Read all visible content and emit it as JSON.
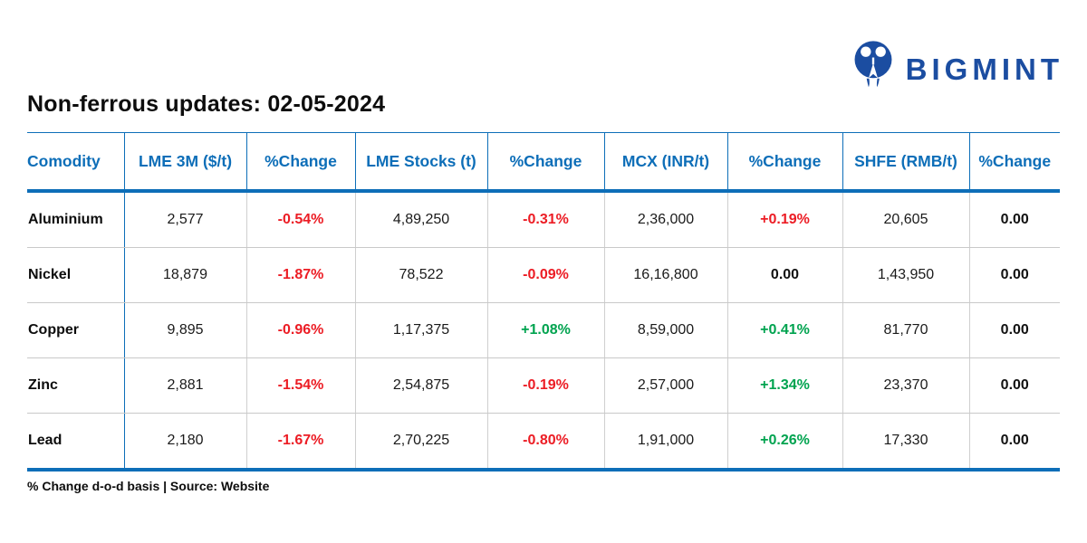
{
  "logo": {
    "text": "BIGMINT",
    "color": "#1B4DA1"
  },
  "title": "Non-ferrous updates: 02-05-2024",
  "footnote": "% Change d-o-d basis | Source: Website",
  "colors": {
    "header_blue": "#0d6eb8",
    "negative_red": "#EC1C24",
    "positive_green": "#00A34F",
    "neutral_black": "#111111",
    "divider_gray": "#c9c9c9"
  },
  "chart_data": {
    "type": "table",
    "title": "Non-ferrous updates: 02-05-2024",
    "note": "% Change d-o-d basis | Source: Website",
    "columns": [
      "Comodity",
      "LME 3M ($/t)",
      "%Change",
      "LME Stocks (t)",
      "%Change",
      "MCX (INR/t)",
      "%Change",
      "SHFE (RMB/t)",
      "%Change"
    ],
    "rows": [
      {
        "cells": [
          {
            "text": "Aluminium",
            "style": "commodity"
          },
          {
            "text": "2,577",
            "style": "num"
          },
          {
            "text": "-0.54%",
            "style": "red"
          },
          {
            "text": "4,89,250",
            "style": "num"
          },
          {
            "text": "-0.31%",
            "style": "red"
          },
          {
            "text": "2,36,000",
            "style": "num"
          },
          {
            "text": "+0.19%",
            "style": "red"
          },
          {
            "text": "20,605",
            "style": "num"
          },
          {
            "text": "0.00",
            "style": "zero"
          }
        ]
      },
      {
        "cells": [
          {
            "text": "Nickel",
            "style": "commodity"
          },
          {
            "text": "18,879",
            "style": "num"
          },
          {
            "text": "-1.87%",
            "style": "red"
          },
          {
            "text": "78,522",
            "style": "num"
          },
          {
            "text": "-0.09%",
            "style": "red"
          },
          {
            "text": "16,16,800",
            "style": "num"
          },
          {
            "text": "0.00",
            "style": "zero"
          },
          {
            "text": "1,43,950",
            "style": "num"
          },
          {
            "text": "0.00",
            "style": "zero"
          }
        ]
      },
      {
        "cells": [
          {
            "text": "Copper",
            "style": "commodity"
          },
          {
            "text": "9,895",
            "style": "num"
          },
          {
            "text": "-0.96%",
            "style": "red"
          },
          {
            "text": "1,17,375",
            "style": "num"
          },
          {
            "text": "+1.08%",
            "style": "green"
          },
          {
            "text": "8,59,000",
            "style": "num"
          },
          {
            "text": "+0.41%",
            "style": "green"
          },
          {
            "text": "81,770",
            "style": "num"
          },
          {
            "text": "0.00",
            "style": "zero"
          }
        ]
      },
      {
        "cells": [
          {
            "text": "Zinc",
            "style": "commodity"
          },
          {
            "text": "2,881",
            "style": "num"
          },
          {
            "text": "-1.54%",
            "style": "red"
          },
          {
            "text": "2,54,875",
            "style": "num"
          },
          {
            "text": "-0.19%",
            "style": "red"
          },
          {
            "text": "2,57,000",
            "style": "num"
          },
          {
            "text": "+1.34%",
            "style": "green"
          },
          {
            "text": "23,370",
            "style": "num"
          },
          {
            "text": "0.00",
            "style": "zero"
          }
        ]
      },
      {
        "cells": [
          {
            "text": "Lead",
            "style": "commodity"
          },
          {
            "text": "2,180",
            "style": "num"
          },
          {
            "text": "-1.67%",
            "style": "red"
          },
          {
            "text": "2,70,225",
            "style": "num"
          },
          {
            "text": "-0.80%",
            "style": "red"
          },
          {
            "text": "1,91,000",
            "style": "num"
          },
          {
            "text": "+0.26%",
            "style": "green"
          },
          {
            "text": "17,330",
            "style": "num"
          },
          {
            "text": "0.00",
            "style": "zero"
          }
        ]
      }
    ]
  }
}
